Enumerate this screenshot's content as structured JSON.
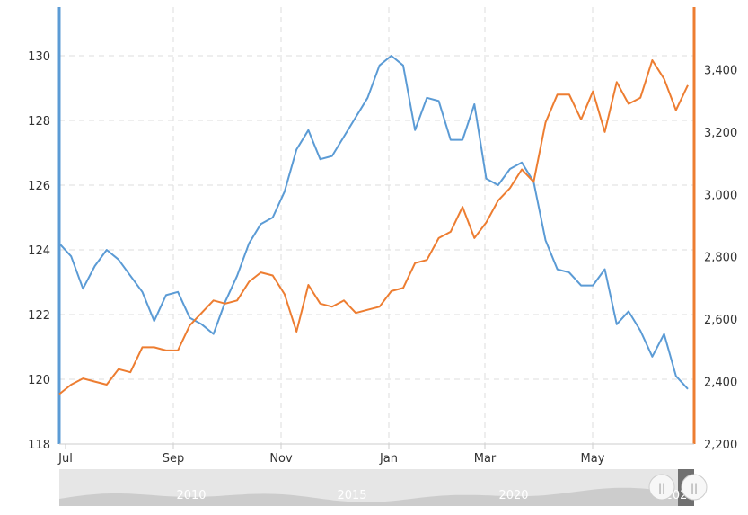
{
  "chart_data": {
    "type": "line",
    "x_ticks": [
      "Jul",
      "Sep",
      "Nov",
      "Jan",
      "Mar",
      "May"
    ],
    "y_left": {
      "lim": [
        118,
        131.5
      ],
      "ticks": [
        "118",
        "120",
        "122",
        "124",
        "126",
        "128",
        "130"
      ],
      "color": "#5b9bd5"
    },
    "y_right": {
      "lim": [
        2200,
        3600
      ],
      "ticks": [
        "2,200",
        "2,400",
        "2,600",
        "2,800",
        "3,000",
        "3,200",
        "3,400"
      ],
      "color": "#ed7d31"
    },
    "grid": true,
    "series": [
      {
        "axis": "left",
        "color": "#5b9bd5",
        "values": [
          124.2,
          123.8,
          122.8,
          123.5,
          124.0,
          123.7,
          123.2,
          122.7,
          121.8,
          122.6,
          122.7,
          121.9,
          121.7,
          121.4,
          122.4,
          123.2,
          124.2,
          124.8,
          125.0,
          125.8,
          127.1,
          127.7,
          126.8,
          126.9,
          127.5,
          128.1,
          128.7,
          129.7,
          130.0,
          129.7,
          127.7,
          128.7,
          128.6,
          127.4,
          127.4,
          128.5,
          126.2,
          126.0,
          126.5,
          126.7,
          126.1,
          124.3,
          123.4,
          123.3,
          122.9,
          122.9,
          123.4,
          121.7,
          122.1,
          121.5,
          120.7,
          121.4,
          120.1,
          119.7
        ]
      },
      {
        "axis": "right",
        "color": "#ed7d31",
        "values": [
          2360,
          2390,
          2410,
          2400,
          2390,
          2440,
          2430,
          2510,
          2510,
          2500,
          2500,
          2580,
          2620,
          2660,
          2650,
          2660,
          2720,
          2750,
          2740,
          2680,
          2560,
          2710,
          2650,
          2640,
          2660,
          2620,
          2630,
          2640,
          2690,
          2700,
          2780,
          2790,
          2860,
          2880,
          2960,
          2860,
          2910,
          2980,
          3020,
          3080,
          3040,
          3230,
          3320,
          3320,
          3240,
          3330,
          3200,
          3360,
          3290,
          3310,
          3430,
          3370,
          3270,
          3350
        ]
      }
    ]
  },
  "navigator": {
    "labels": [
      "2010",
      "2015",
      "2020",
      "202"
    ],
    "handle_glyph": "||"
  }
}
